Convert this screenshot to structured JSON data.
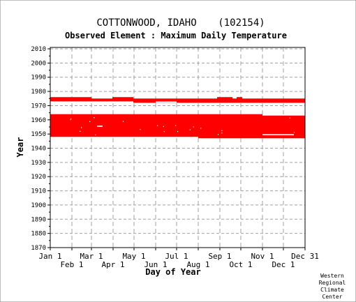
{
  "chart_data": {
    "type": "heatmap",
    "title": "COTTONWOOD, IDAHO",
    "station_id": "(102154)",
    "subtitle": "Observed Element : Maximum Daily Temperature",
    "xlabel": "Day of Year",
    "ylabel": "Year",
    "x_tick_labels_upper": [
      "Jan 1",
      "Mar 1",
      "May 1",
      "Jul 1",
      "Sep 1",
      "Nov 1",
      "Dec 31"
    ],
    "x_tick_labels_lower": [
      "Feb 1",
      "Apr 1",
      "Jun 1",
      "Aug 1",
      "Oct 1",
      "Dec 1"
    ],
    "y_ticks": [
      1870,
      1880,
      1890,
      1900,
      1910,
      1920,
      1930,
      1940,
      1950,
      1960,
      1970,
      1980,
      1990,
      2000,
      2010
    ],
    "xlim": [
      1,
      366
    ],
    "ylim": [
      1870,
      2011
    ],
    "grid": true,
    "data_color": "#ff0000",
    "coverage": [
      {
        "start_day": 1,
        "end_day": 60,
        "start_year": 1973,
        "end_year": 1975
      },
      {
        "start_day": 60,
        "end_day": 90,
        "start_year": 1973,
        "end_year": 1974
      },
      {
        "start_day": 90,
        "end_day": 120,
        "start_year": 1973,
        "end_year": 1975
      },
      {
        "start_day": 120,
        "end_day": 240,
        "start_year": 1972,
        "end_year": 1974
      },
      {
        "start_day": 240,
        "end_day": 262,
        "start_year": 1972,
        "end_year": 1975
      },
      {
        "start_day": 262,
        "end_day": 268,
        "start_year": 1972,
        "end_year": 1974
      },
      {
        "start_day": 268,
        "end_day": 276,
        "start_year": 1972,
        "end_year": 1975
      },
      {
        "start_day": 276,
        "end_day": 366,
        "start_year": 1972,
        "end_year": 1974
      },
      {
        "start_day": 1,
        "end_day": 213,
        "start_year": 1948,
        "end_year": 1963
      },
      {
        "start_day": 213,
        "end_day": 305,
        "start_year": 1947,
        "end_year": 1963
      },
      {
        "start_day": 305,
        "end_day": 366,
        "start_year": 1947,
        "end_year": 1962
      }
    ],
    "gaps": [
      {
        "start_day": 152,
        "end_day": 182,
        "year": 1972
      },
      {
        "start_day": 68,
        "end_day": 76,
        "year": 1955
      },
      {
        "start_day": 305,
        "end_day": 350,
        "year": 1949
      }
    ]
  },
  "credit": [
    "Western",
    "Regional",
    "Climate",
    "Center"
  ]
}
